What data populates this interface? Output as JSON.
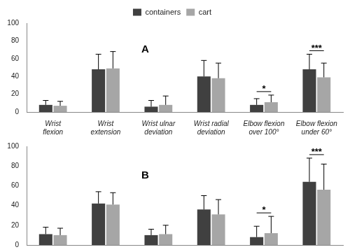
{
  "chart_data": [
    {
      "type": "bar",
      "title": "A",
      "categories": [
        "Wrist flexion",
        "Wrist extension",
        "Wrist ulnar deviation",
        "Wrist radial deviation",
        "Elbow flexion over 100°",
        "Elbow flexion under 60°"
      ],
      "series": [
        {
          "name": "containers",
          "color": "#404040",
          "values": [
            8,
            48,
            6,
            40,
            8,
            48
          ],
          "errors": [
            5,
            17,
            7,
            18,
            7,
            17
          ]
        },
        {
          "name": "cart",
          "color": "#a6a6a6",
          "values": [
            7,
            49,
            8,
            38,
            11,
            39
          ],
          "errors": [
            5,
            19,
            10,
            17,
            8,
            16
          ]
        }
      ],
      "annotations": [
        {
          "category": "Elbow flexion over 100°",
          "text": "*"
        },
        {
          "category": "Elbow flexion under 60°",
          "text": "***"
        }
      ],
      "ylim": [
        0,
        100
      ],
      "yticks": [
        0,
        20,
        40,
        60,
        80,
        100
      ],
      "grid": false,
      "legend": "top"
    },
    {
      "type": "bar",
      "title": "B",
      "categories": [
        "Wrist flexion",
        "Wrist extension",
        "Wrist ulnar deviation",
        "Wrist radial deviation",
        "Elbow flexion over 100°",
        "Elbow flexion under 60°"
      ],
      "series": [
        {
          "name": "containers",
          "color": "#404040",
          "values": [
            11,
            42,
            10,
            36,
            8,
            64
          ],
          "errors": [
            7,
            12,
            6,
            14,
            11,
            24
          ]
        },
        {
          "name": "cart",
          "color": "#a6a6a6",
          "values": [
            10,
            41,
            11,
            31,
            12,
            56
          ],
          "errors": [
            7,
            12,
            9,
            15,
            17,
            26
          ]
        }
      ],
      "annotations": [
        {
          "category": "Elbow flexion over 100°",
          "text": "*"
        },
        {
          "category": "Elbow flexion under 60°",
          "text": "***"
        }
      ],
      "ylim": [
        0,
        100
      ],
      "yticks": [
        0,
        20,
        40,
        60,
        80,
        100
      ],
      "grid": false,
      "tick_labels": "y"
    }
  ]
}
